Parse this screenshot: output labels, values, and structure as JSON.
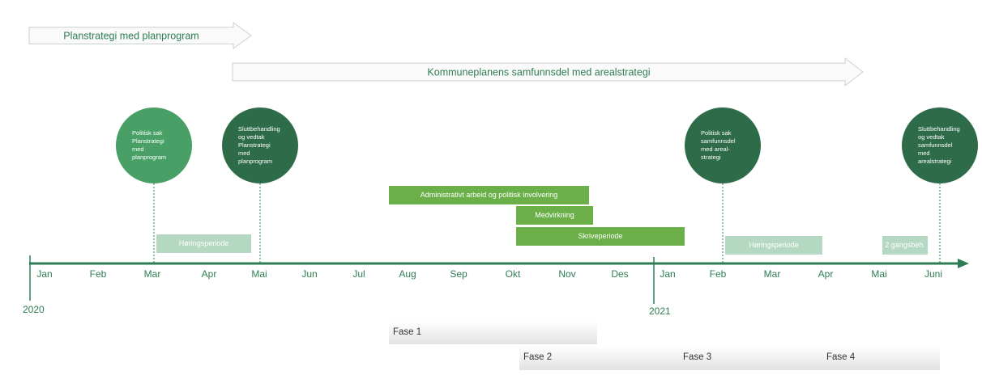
{
  "arrows": [
    "Planstrategi med planprogram",
    "Kommuneplanens samfunnsdel med arealstrategi"
  ],
  "milestones": [
    {
      "lines": [
        "Politisk sak",
        "Planstrategi",
        "med",
        "planprogram"
      ]
    },
    {
      "lines": [
        "Sluttbehandling",
        "og vedtak",
        "Planstrategi",
        "med",
        "planprogram"
      ]
    },
    {
      "lines": [
        "Politisk sak",
        "samfunnsdel",
        "med areal-",
        "strategi"
      ]
    },
    {
      "lines": [
        "Sluttbehandling",
        "og vedtak",
        "samfunnsdel",
        "med",
        "arealstrategi"
      ]
    }
  ],
  "activities": [
    "Administrativt arbeid og politisk involvering",
    "Medvirkning",
    "Skriveperiode"
  ],
  "periods": [
    "Høringsperiode",
    "Høringsperiode",
    "2 gangsbeh."
  ],
  "months": [
    "Jan",
    "Feb",
    "Mar",
    "Apr",
    "Mai",
    "Jun",
    "Jul",
    "Aug",
    "Sep",
    "Okt",
    "Nov",
    "Des",
    "Jan",
    "Feb",
    "Mar",
    "Apr",
    "Mai",
    "Juni"
  ],
  "years": [
    "2020",
    "2021"
  ],
  "phases": [
    "Fase 1",
    "Fase 2",
    "Fase 3",
    "Fase 4"
  ]
}
